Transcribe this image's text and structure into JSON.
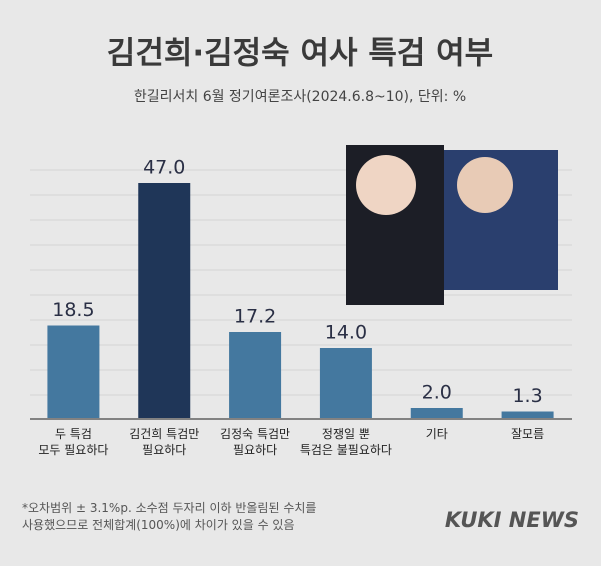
{
  "chart_data": {
    "type": "bar",
    "title": "김건희·김정숙 여사 특검 여부",
    "subtitle": "한길리서치 6월 정기여론조사(2024.6.8~10), 단위: %",
    "categories": [
      "두 특검\n모두 필요하다",
      "김건희 특검만\n필요하다",
      "김정숙 특검만\n필요하다",
      "정쟁일 뿐\n특검은 불필요하다",
      "기타",
      "잘모름"
    ],
    "values": [
      18.5,
      47.0,
      17.2,
      14.0,
      2.0,
      1.3
    ],
    "value_labels": [
      "18.5",
      "47.0",
      "17.2",
      "14.0",
      "2.0",
      "1.3"
    ],
    "colors": [
      "#44789f",
      "#1f3658",
      "#44789f",
      "#44789f",
      "#44789f",
      "#44789f"
    ],
    "ylim": [
      0,
      50
    ],
    "footnote": "*오차범위 ± 3.1%p. 소수점 두자리 이하 반올림된 수치를\n사용했으므로 전체합계(100%)에 차이가 있을 수 있음",
    "source": "KUKI NEWS"
  }
}
